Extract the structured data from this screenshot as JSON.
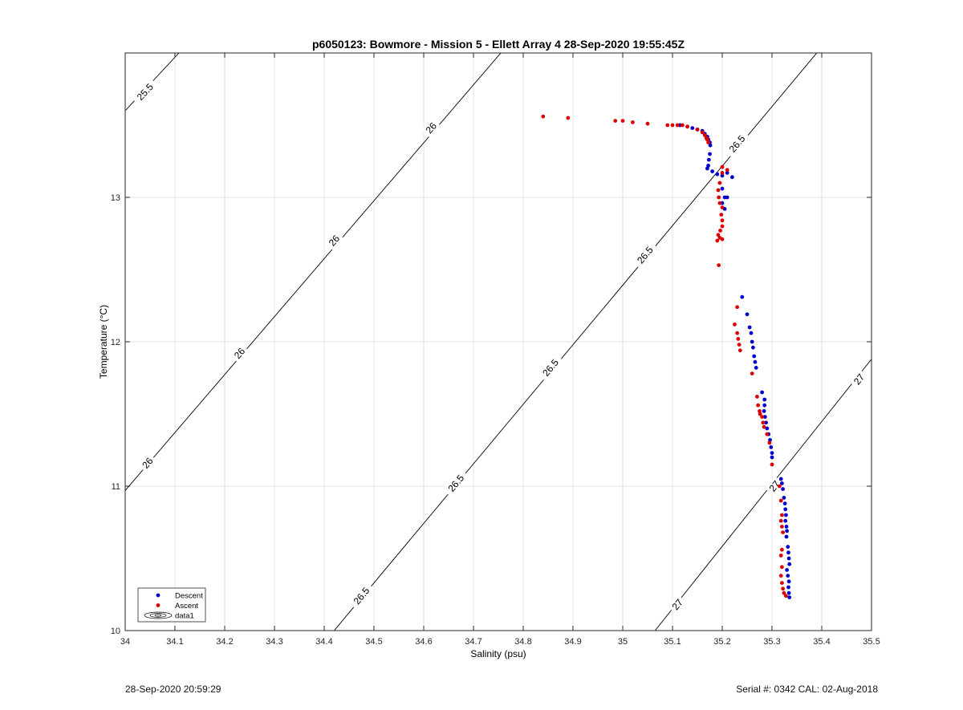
{
  "footer": {
    "timestamp": "28-Sep-2020 20:59:29",
    "serial_cal": "Serial #: 0342  CAL: 02-Aug-2018"
  },
  "chart_data": {
    "type": "scatter",
    "title": "p6050123: Bowmore - Mission 5 - Ellett Array 4 28-Sep-2020 19:55:45Z",
    "xlabel": "Salinity (psu)",
    "ylabel": "Temperature (°C)",
    "xlim": [
      34,
      35.5
    ],
    "ylim": [
      10,
      14
    ],
    "xticks": [
      34,
      34.1,
      34.2,
      34.3,
      34.4,
      34.5,
      34.6,
      34.7,
      34.8,
      34.9,
      35,
      35.1,
      35.2,
      35.3,
      35.4,
      35.5
    ],
    "xtick_labels": [
      "34",
      "34.1",
      "34.2",
      "34.3",
      "34.4",
      "34.5",
      "34.6",
      "34.7",
      "34.8",
      "34.9",
      "35",
      "35.1",
      "35.2",
      "35.3",
      "35.4",
      "35.5"
    ],
    "yticks": [
      10,
      11,
      12,
      13
    ],
    "ytick_labels": [
      "10",
      "11",
      "12",
      "13"
    ],
    "grid": true,
    "legend": {
      "placement": "bottom-left",
      "entries": [
        {
          "label": "Descent",
          "color": "#0000cc",
          "marker": "dot"
        },
        {
          "label": "Ascent",
          "color": "#dd0000",
          "marker": "dot"
        },
        {
          "label": "data1",
          "marker": "contour"
        }
      ]
    },
    "contours": [
      {
        "label": "25.5",
        "lines": [
          [
            [
              34.0,
              13.6
            ],
            [
              34.108,
              14.0
            ]
          ]
        ],
        "label_positions": [
          [
            34.04,
            13.73
          ]
        ]
      },
      {
        "label": "26",
        "lines": [
          [
            [
              34.0,
              10.97
            ],
            [
              34.755,
              14.0
            ]
          ]
        ],
        "label_positions": [
          [
            34.045,
            11.16
          ],
          [
            34.23,
            11.92
          ],
          [
            34.42,
            12.7
          ],
          [
            34.615,
            13.48
          ]
        ]
      },
      {
        "label": "26.5",
        "lines": [
          [
            [
              34.42,
              10.0
            ],
            [
              35.39,
              14.0
            ]
          ]
        ],
        "label_positions": [
          [
            34.475,
            10.24
          ],
          [
            34.665,
            11.02
          ],
          [
            34.855,
            11.82
          ],
          [
            35.045,
            12.6
          ],
          [
            35.23,
            13.37
          ]
        ]
      },
      {
        "label": "27",
        "lines": [
          [
            [
              35.065,
              10.0
            ],
            [
              35.5,
              11.88
            ]
          ]
        ],
        "label_positions": [
          [
            35.11,
            10.18
          ],
          [
            35.305,
            11.0
          ],
          [
            35.475,
            11.74
          ]
        ]
      }
    ],
    "series": [
      {
        "name": "Descent",
        "color": "#0000cc",
        "points": [
          [
            35.115,
            13.5
          ],
          [
            35.13,
            13.49
          ],
          [
            35.14,
            13.48
          ],
          [
            35.15,
            13.47
          ],
          [
            35.16,
            13.46
          ],
          [
            35.165,
            13.44
          ],
          [
            35.17,
            13.42
          ],
          [
            35.172,
            13.4
          ],
          [
            35.175,
            13.38
          ],
          [
            35.176,
            13.36
          ],
          [
            35.175,
            13.3
          ],
          [
            35.173,
            13.26
          ],
          [
            35.172,
            13.22
          ],
          [
            35.17,
            13.2
          ],
          [
            35.18,
            13.18
          ],
          [
            35.19,
            13.16
          ],
          [
            35.2,
            13.15
          ],
          [
            35.21,
            13.17
          ],
          [
            35.22,
            13.14
          ],
          [
            35.2,
            13.06
          ],
          [
            35.205,
            13.0
          ],
          [
            35.21,
            13.0
          ],
          [
            35.2,
            12.96
          ],
          [
            35.205,
            12.92
          ],
          [
            35.24,
            12.31
          ],
          [
            35.25,
            12.19
          ],
          [
            35.255,
            12.1
          ],
          [
            35.258,
            12.06
          ],
          [
            35.26,
            12.0
          ],
          [
            35.262,
            11.96
          ],
          [
            35.264,
            11.9
          ],
          [
            35.266,
            11.86
          ],
          [
            35.268,
            11.82
          ],
          [
            35.28,
            11.65
          ],
          [
            35.285,
            11.6
          ],
          [
            35.285,
            11.56
          ],
          [
            35.284,
            11.52
          ],
          [
            35.286,
            11.48
          ],
          [
            35.288,
            11.44
          ],
          [
            35.29,
            11.4
          ],
          [
            35.293,
            11.36
          ],
          [
            35.296,
            11.32
          ],
          [
            35.298,
            11.27
          ],
          [
            35.3,
            11.23
          ],
          [
            35.3,
            11.2
          ],
          [
            35.318,
            11.05
          ],
          [
            35.32,
            11.02
          ],
          [
            35.322,
            10.98
          ],
          [
            35.324,
            10.92
          ],
          [
            35.326,
            10.88
          ],
          [
            35.327,
            10.84
          ],
          [
            35.328,
            10.8
          ],
          [
            35.327,
            10.76
          ],
          [
            35.329,
            10.72
          ],
          [
            35.33,
            10.69
          ],
          [
            35.329,
            10.65
          ],
          [
            35.332,
            10.58
          ],
          [
            35.333,
            10.54
          ],
          [
            35.334,
            10.5
          ],
          [
            35.335,
            10.46
          ],
          [
            35.33,
            10.42
          ],
          [
            35.332,
            10.38
          ],
          [
            35.334,
            10.34
          ],
          [
            35.333,
            10.3
          ],
          [
            35.334,
            10.26
          ],
          [
            35.335,
            10.23
          ]
        ]
      },
      {
        "name": "Ascent",
        "color": "#dd0000",
        "points": [
          [
            34.84,
            13.56
          ],
          [
            34.89,
            13.55
          ],
          [
            34.985,
            13.53
          ],
          [
            35.0,
            13.53
          ],
          [
            35.02,
            13.52
          ],
          [
            35.05,
            13.51
          ],
          [
            35.09,
            13.5
          ],
          [
            35.1,
            13.5
          ],
          [
            35.11,
            13.5
          ],
          [
            35.12,
            13.5
          ],
          [
            35.13,
            13.49
          ],
          [
            35.15,
            13.47
          ],
          [
            35.16,
            13.45
          ],
          [
            35.165,
            13.43
          ],
          [
            35.168,
            13.41
          ],
          [
            35.17,
            13.4
          ],
          [
            35.172,
            13.38
          ],
          [
            35.2,
            13.21
          ],
          [
            35.21,
            13.19
          ],
          [
            35.2,
            13.17
          ],
          [
            35.195,
            13.1
          ],
          [
            35.192,
            13.05
          ],
          [
            35.193,
            13.0
          ],
          [
            35.195,
            12.96
          ],
          [
            35.2,
            12.93
          ],
          [
            35.198,
            12.88
          ],
          [
            35.2,
            12.84
          ],
          [
            35.2,
            12.8
          ],
          [
            35.196,
            12.77
          ],
          [
            35.192,
            12.74
          ],
          [
            35.19,
            12.7
          ],
          [
            35.195,
            12.72
          ],
          [
            35.2,
            12.71
          ],
          [
            35.193,
            12.53
          ],
          [
            35.23,
            12.24
          ],
          [
            35.225,
            12.12
          ],
          [
            35.23,
            12.06
          ],
          [
            35.232,
            12.02
          ],
          [
            35.234,
            11.98
          ],
          [
            35.236,
            11.94
          ],
          [
            35.26,
            11.78
          ],
          [
            35.27,
            11.62
          ],
          [
            35.272,
            11.56
          ],
          [
            35.275,
            11.52
          ],
          [
            35.276,
            11.5
          ],
          [
            35.28,
            11.48
          ],
          [
            35.282,
            11.44
          ],
          [
            35.284,
            11.41
          ],
          [
            35.29,
            11.36
          ],
          [
            35.295,
            11.3
          ],
          [
            35.3,
            11.15
          ],
          [
            35.315,
            11.0
          ],
          [
            35.318,
            10.9
          ],
          [
            35.32,
            10.8
          ],
          [
            35.318,
            10.76
          ],
          [
            35.32,
            10.72
          ],
          [
            35.322,
            10.68
          ],
          [
            35.32,
            10.56
          ],
          [
            35.318,
            10.52
          ],
          [
            35.32,
            10.44
          ],
          [
            35.318,
            10.38
          ],
          [
            35.32,
            10.33
          ],
          [
            35.322,
            10.29
          ],
          [
            35.324,
            10.26
          ],
          [
            35.328,
            10.24
          ]
        ]
      }
    ]
  }
}
